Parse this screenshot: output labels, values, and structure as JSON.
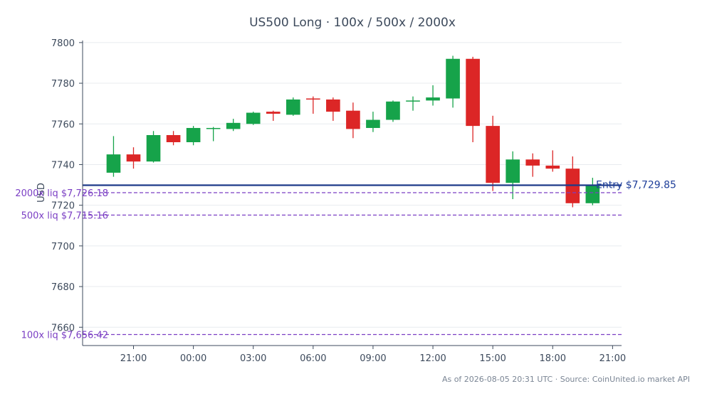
{
  "chart_data": {
    "type": "candlestick",
    "title": "US500 Long · 100x / 500x / 2000x",
    "ylabel": "USD",
    "xlabel": "",
    "ylim": [
      7651,
      7801
    ],
    "yticks": [
      7660,
      7680,
      7700,
      7720,
      7740,
      7760,
      7780,
      7800
    ],
    "x_domain": [
      -2.55,
      24.45
    ],
    "xticks": [
      {
        "t": 0,
        "label": "21:00"
      },
      {
        "t": 3,
        "label": "00:00"
      },
      {
        "t": 6,
        "label": "03:00"
      },
      {
        "t": 9,
        "label": "06:00"
      },
      {
        "t": 12,
        "label": "09:00"
      },
      {
        "t": 15,
        "label": "12:00"
      },
      {
        "t": 18,
        "label": "15:00"
      },
      {
        "t": 21,
        "label": "18:00"
      },
      {
        "t": 24,
        "label": "21:00"
      }
    ],
    "candles": [
      {
        "t": -1,
        "o": 7736.0,
        "h": 7754.0,
        "l": 7734.0,
        "c": 7745.0
      },
      {
        "t": 0,
        "o": 7745.0,
        "h": 7748.5,
        "l": 7738.0,
        "c": 7741.5
      },
      {
        "t": 1,
        "o": 7741.5,
        "h": 7756.5,
        "l": 7741.0,
        "c": 7754.5
      },
      {
        "t": 2,
        "o": 7754.5,
        "h": 7756.5,
        "l": 7749.5,
        "c": 7751.0
      },
      {
        "t": 3,
        "o": 7751.0,
        "h": 7759.0,
        "l": 7749.5,
        "c": 7758.0
      },
      {
        "t": 4,
        "o": 7757.5,
        "h": 7758.5,
        "l": 7751.5,
        "c": 7758.0
      },
      {
        "t": 5,
        "o": 7757.5,
        "h": 7762.5,
        "l": 7756.5,
        "c": 7760.5
      },
      {
        "t": 6,
        "o": 7760.0,
        "h": 7766.0,
        "l": 7759.5,
        "c": 7765.5
      },
      {
        "t": 7,
        "o": 7766.0,
        "h": 7766.5,
        "l": 7761.5,
        "c": 7765.0
      },
      {
        "t": 8,
        "o": 7764.5,
        "h": 7773.0,
        "l": 7764.0,
        "c": 7772.0
      },
      {
        "t": 9,
        "o": 7772.5,
        "h": 7773.5,
        "l": 7765.0,
        "c": 7772.0
      },
      {
        "t": 10,
        "o": 7772.0,
        "h": 7773.0,
        "l": 7761.5,
        "c": 7766.0
      },
      {
        "t": 11,
        "o": 7766.5,
        "h": 7770.5,
        "l": 7753.0,
        "c": 7757.5
      },
      {
        "t": 12,
        "o": 7758.0,
        "h": 7766.0,
        "l": 7756.0,
        "c": 7762.0
      },
      {
        "t": 13,
        "o": 7762.0,
        "h": 7771.5,
        "l": 7761.0,
        "c": 7771.0
      },
      {
        "t": 14,
        "o": 7771.0,
        "h": 7773.5,
        "l": 7766.5,
        "c": 7771.5
      },
      {
        "t": 15,
        "o": 7771.5,
        "h": 7779.0,
        "l": 7769.0,
        "c": 7773.0
      },
      {
        "t": 16,
        "o": 7772.5,
        "h": 7793.5,
        "l": 7768.0,
        "c": 7792.0
      },
      {
        "t": 17,
        "o": 7792.0,
        "h": 7793.0,
        "l": 7751.0,
        "c": 7759.0
      },
      {
        "t": 18,
        "o": 7759.0,
        "h": 7764.0,
        "l": 7727.0,
        "c": 7731.0
      },
      {
        "t": 19,
        "o": 7731.0,
        "h": 7746.5,
        "l": 7723.0,
        "c": 7742.5
      },
      {
        "t": 20,
        "o": 7742.5,
        "h": 7745.5,
        "l": 7734.0,
        "c": 7739.5
      },
      {
        "t": 21,
        "o": 7739.5,
        "h": 7747.0,
        "l": 7736.5,
        "c": 7738.0
      },
      {
        "t": 22,
        "o": 7738.0,
        "h": 7744.0,
        "l": 7719.0,
        "c": 7721.0
      },
      {
        "t": 23,
        "o": 7721.0,
        "h": 7733.5,
        "l": 7720.0,
        "c": 7730.0
      }
    ],
    "entry": {
      "value": 7729.85,
      "label": "Entry $7,729.85"
    },
    "liquidations": [
      {
        "value": 7726.18,
        "label": "2000x liq $7,726.18"
      },
      {
        "value": 7715.16,
        "label": "500x liq $7,715.16"
      },
      {
        "value": 7656.42,
        "label": "100x liq $7,656.42"
      }
    ],
    "grid": true,
    "colors": {
      "up": "#16a34a",
      "down": "#dc2626",
      "entry": "#1e3a8a",
      "liq": "#7b3fc4",
      "axis": "#3d4a5c",
      "grid": "#e8ebef"
    }
  },
  "footer": "As of 2026-08-05 20:31 UTC · Source: CoinUnited.io market API"
}
